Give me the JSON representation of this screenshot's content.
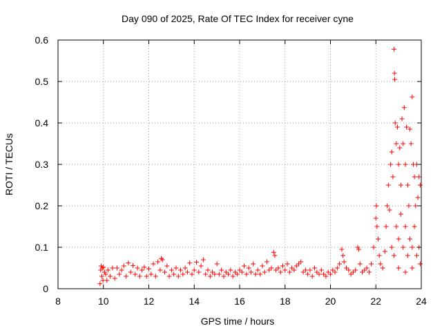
{
  "chart_data": {
    "type": "scatter",
    "title": "Day 090 of 2025, Rate Of TEC Index for receiver cyne",
    "xlabel": "GPS time / hours",
    "ylabel": "ROTI / TECUs",
    "xlim": [
      8,
      24
    ],
    "ylim": [
      0,
      0.6
    ],
    "x_ticks": [
      8,
      10,
      12,
      14,
      16,
      18,
      20,
      22,
      24
    ],
    "x_tick_labels": [
      "8",
      "10",
      "12",
      "14",
      "16",
      "18",
      "20",
      "22",
      "24"
    ],
    "y_ticks": [
      0,
      0.1,
      0.2,
      0.3,
      0.4,
      0.5,
      0.6
    ],
    "y_tick_labels": [
      "0",
      "0.1",
      "0.2",
      "0.3",
      "0.4",
      "0.5",
      "0.6"
    ],
    "grid": true,
    "marker": "plus",
    "series_color": "#ff0000",
    "series": [
      {
        "points": [
          [
            9.85,
            0.012
          ],
          [
            9.88,
            0.045
          ],
          [
            9.9,
            0.055
          ],
          [
            9.93,
            0.03
          ],
          [
            9.95,
            0.05
          ],
          [
            9.98,
            0.02
          ],
          [
            10.0,
            0.052
          ],
          [
            10.05,
            0.04
          ],
          [
            10.1,
            0.035
          ],
          [
            10.15,
            0.02
          ],
          [
            10.2,
            0.045
          ],
          [
            10.3,
            0.03
          ],
          [
            10.4,
            0.05
          ],
          [
            10.5,
            0.025
          ],
          [
            10.6,
            0.05
          ],
          [
            10.7,
            0.035
          ],
          [
            10.8,
            0.045
          ],
          [
            10.9,
            0.055
          ],
          [
            11.0,
            0.03
          ],
          [
            11.1,
            0.062
          ],
          [
            11.2,
            0.04
          ],
          [
            11.3,
            0.056
          ],
          [
            11.4,
            0.035
          ],
          [
            11.5,
            0.05
          ],
          [
            11.6,
            0.03
          ],
          [
            11.7,
            0.045
          ],
          [
            11.8,
            0.052
          ],
          [
            11.9,
            0.03
          ],
          [
            12.0,
            0.048
          ],
          [
            12.1,
            0.035
          ],
          [
            12.2,
            0.06
          ],
          [
            12.3,
            0.03
          ],
          [
            12.4,
            0.065
          ],
          [
            12.5,
            0.045
          ],
          [
            12.55,
            0.073
          ],
          [
            12.6,
            0.07
          ],
          [
            12.7,
            0.04
          ],
          [
            12.8,
            0.055
          ],
          [
            12.9,
            0.03
          ],
          [
            13.0,
            0.045
          ],
          [
            13.1,
            0.035
          ],
          [
            13.2,
            0.05
          ],
          [
            13.3,
            0.03
          ],
          [
            13.4,
            0.045
          ],
          [
            13.5,
            0.035
          ],
          [
            13.6,
            0.05
          ],
          [
            13.7,
            0.04
          ],
          [
            13.8,
            0.062
          ],
          [
            13.9,
            0.035
          ],
          [
            14.0,
            0.045
          ],
          [
            14.1,
            0.064
          ],
          [
            14.2,
            0.04
          ],
          [
            14.3,
            0.055
          ],
          [
            14.4,
            0.07
          ],
          [
            14.5,
            0.035
          ],
          [
            14.6,
            0.045
          ],
          [
            14.7,
            0.03
          ],
          [
            14.8,
            0.04
          ],
          [
            14.9,
            0.035
          ],
          [
            15.0,
            0.06
          ],
          [
            15.1,
            0.035
          ],
          [
            15.2,
            0.045
          ],
          [
            15.3,
            0.03
          ],
          [
            15.4,
            0.04
          ],
          [
            15.5,
            0.035
          ],
          [
            15.6,
            0.045
          ],
          [
            15.7,
            0.03
          ],
          [
            15.8,
            0.04
          ],
          [
            15.9,
            0.035
          ],
          [
            16.0,
            0.045
          ],
          [
            16.1,
            0.04
          ],
          [
            16.2,
            0.055
          ],
          [
            16.3,
            0.035
          ],
          [
            16.4,
            0.05
          ],
          [
            16.5,
            0.04
          ],
          [
            16.6,
            0.06
          ],
          [
            16.7,
            0.035
          ],
          [
            16.8,
            0.045
          ],
          [
            16.9,
            0.035
          ],
          [
            17.0,
            0.055
          ],
          [
            17.1,
            0.04
          ],
          [
            17.2,
            0.065
          ],
          [
            17.3,
            0.045
          ],
          [
            17.4,
            0.05
          ],
          [
            17.5,
            0.088
          ],
          [
            17.55,
            0.08
          ],
          [
            17.6,
            0.045
          ],
          [
            17.7,
            0.05
          ],
          [
            17.8,
            0.04
          ],
          [
            17.9,
            0.055
          ],
          [
            18.0,
            0.045
          ],
          [
            18.1,
            0.06
          ],
          [
            18.2,
            0.04
          ],
          [
            18.3,
            0.05
          ],
          [
            18.4,
            0.045
          ],
          [
            18.5,
            0.055
          ],
          [
            18.6,
            0.06
          ],
          [
            18.7,
            0.065
          ],
          [
            18.8,
            0.04
          ],
          [
            18.9,
            0.045
          ],
          [
            19.0,
            0.035
          ],
          [
            19.1,
            0.045
          ],
          [
            19.2,
            0.03
          ],
          [
            19.3,
            0.05
          ],
          [
            19.4,
            0.04
          ],
          [
            19.5,
            0.035
          ],
          [
            19.6,
            0.045
          ],
          [
            19.7,
            0.035
          ],
          [
            19.8,
            0.03
          ],
          [
            19.9,
            0.04
          ],
          [
            20.0,
            0.035
          ],
          [
            20.1,
            0.045
          ],
          [
            20.2,
            0.04
          ],
          [
            20.3,
            0.05
          ],
          [
            20.4,
            0.06
          ],
          [
            20.5,
            0.095
          ],
          [
            20.55,
            0.08
          ],
          [
            20.6,
            0.065
          ],
          [
            20.7,
            0.05
          ],
          [
            20.8,
            0.045
          ],
          [
            20.9,
            0.035
          ],
          [
            21.0,
            0.04
          ],
          [
            21.1,
            0.045
          ],
          [
            21.2,
            0.1
          ],
          [
            21.25,
            0.095
          ],
          [
            21.3,
            0.06
          ],
          [
            21.4,
            0.04
          ],
          [
            21.5,
            0.045
          ],
          [
            21.6,
            0.05
          ],
          [
            21.7,
            0.04
          ],
          [
            21.8,
            0.06
          ],
          [
            21.9,
            0.1
          ],
          [
            22.0,
            0.17
          ],
          [
            22.02,
            0.2
          ],
          [
            22.05,
            0.15
          ],
          [
            22.1,
            0.12
          ],
          [
            22.15,
            0.08
          ],
          [
            22.2,
            0.06
          ],
          [
            22.3,
            0.05
          ],
          [
            22.4,
            0.09
          ],
          [
            22.45,
            0.15
          ],
          [
            22.5,
            0.2
          ],
          [
            22.55,
            0.25
          ],
          [
            22.6,
            0.19
          ],
          [
            22.65,
            0.3
          ],
          [
            22.7,
            0.33
          ],
          [
            22.75,
            0.27
          ],
          [
            22.8,
            0.578
          ],
          [
            22.82,
            0.52
          ],
          [
            22.83,
            0.505
          ],
          [
            22.85,
            0.4
          ],
          [
            22.9,
            0.35
          ],
          [
            22.95,
            0.39
          ],
          [
            23.0,
            0.3
          ],
          [
            23.05,
            0.34
          ],
          [
            23.1,
            0.25
          ],
          [
            23.15,
            0.41
          ],
          [
            23.2,
            0.35
          ],
          [
            23.25,
            0.437
          ],
          [
            23.3,
            0.3
          ],
          [
            23.35,
            0.39
          ],
          [
            23.4,
            0.25
          ],
          [
            23.45,
            0.2
          ],
          [
            23.5,
            0.385
          ],
          [
            23.55,
            0.35
          ],
          [
            23.6,
            0.463
          ],
          [
            23.65,
            0.3
          ],
          [
            23.7,
            0.27
          ],
          [
            23.75,
            0.2
          ],
          [
            23.8,
            0.3
          ],
          [
            23.85,
            0.22
          ],
          [
            23.9,
            0.27
          ],
          [
            23.95,
            0.25
          ],
          [
            22.9,
            0.15
          ],
          [
            23.0,
            0.12
          ],
          [
            23.1,
            0.18
          ],
          [
            23.2,
            0.1
          ],
          [
            23.3,
            0.15
          ],
          [
            23.4,
            0.08
          ],
          [
            23.5,
            0.12
          ],
          [
            23.6,
            0.1
          ],
          [
            23.7,
            0.15
          ],
          [
            23.8,
            0.08
          ],
          [
            23.9,
            0.1
          ],
          [
            23.95,
            0.06
          ],
          [
            22.7,
            0.1
          ],
          [
            22.8,
            0.08
          ],
          [
            23.0,
            0.05
          ],
          [
            23.3,
            0.04
          ],
          [
            23.6,
            0.05
          ]
        ]
      }
    ]
  }
}
